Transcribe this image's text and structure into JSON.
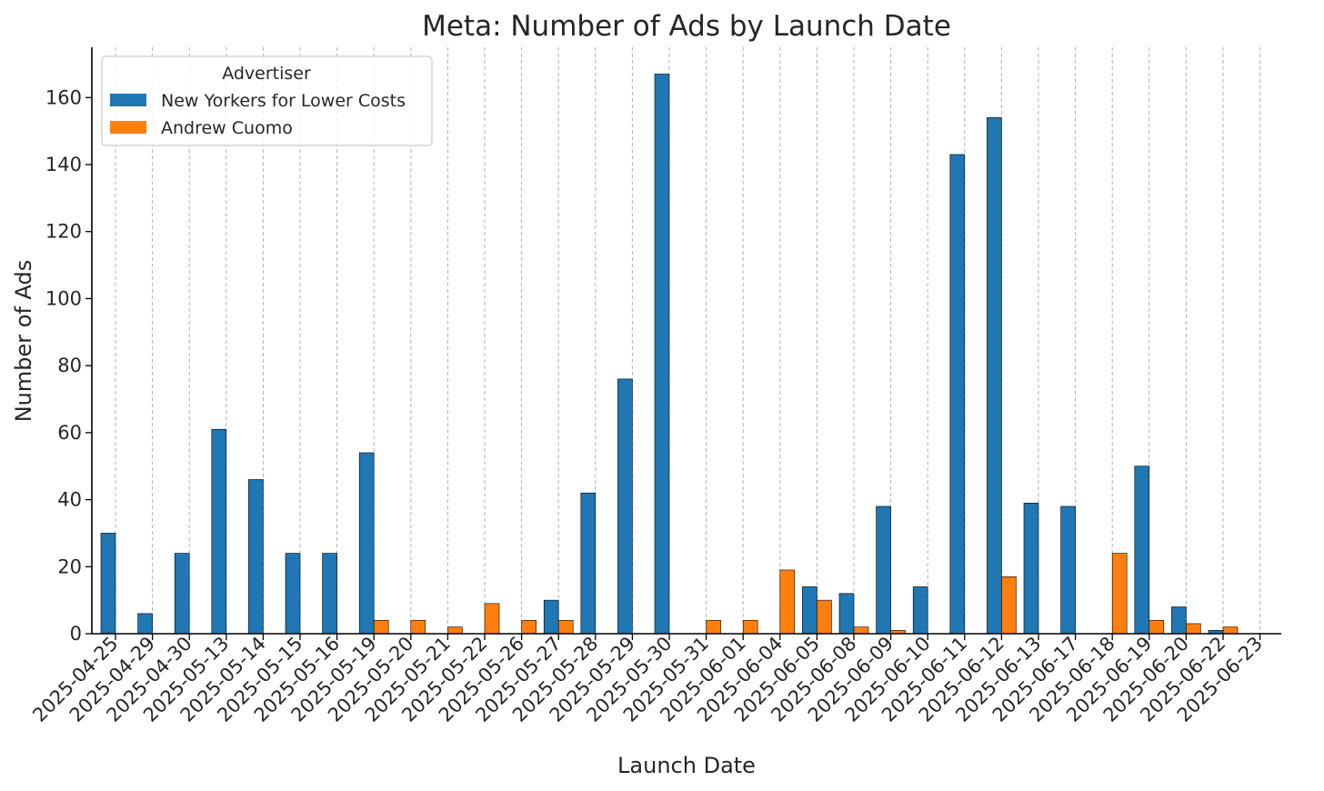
{
  "chart_data": {
    "type": "bar",
    "title": "Meta: Number of Ads by Launch Date",
    "xlabel": "Launch Date",
    "ylabel": "Number of Ads",
    "ylim": [
      0,
      175
    ],
    "yticks": [
      0,
      20,
      40,
      60,
      80,
      100,
      120,
      140,
      160
    ],
    "grid": "vertical dashed lines at each category",
    "legend": {
      "title": "Advertiser",
      "placement": "top-left"
    },
    "categories": [
      "2025-04-25",
      "2025-04-29",
      "2025-04-30",
      "2025-05-13",
      "2025-05-14",
      "2025-05-15",
      "2025-05-16",
      "2025-05-19",
      "2025-05-20",
      "2025-05-21",
      "2025-05-22",
      "2025-05-26",
      "2025-05-27",
      "2025-05-28",
      "2025-05-29",
      "2025-05-30",
      "2025-05-31",
      "2025-06-01",
      "2025-06-04",
      "2025-06-05",
      "2025-06-08",
      "2025-06-09",
      "2025-06-10",
      "2025-06-11",
      "2025-06-12",
      "2025-06-13",
      "2025-06-17",
      "2025-06-18",
      "2025-06-19",
      "2025-06-20",
      "2025-06-22",
      "2025-06-23"
    ],
    "series": [
      {
        "name": "New Yorkers for Lower Costs",
        "color": "#1f77b4",
        "values": [
          30,
          6,
          24,
          61,
          46,
          24,
          24,
          54,
          0,
          0,
          0,
          0,
          10,
          42,
          76,
          167,
          0,
          0,
          0,
          14,
          12,
          38,
          14,
          143,
          154,
          39,
          38,
          0,
          50,
          8,
          1,
          0
        ]
      },
      {
        "name": "Andrew Cuomo",
        "color": "#ff7f0e",
        "values": [
          0,
          0,
          0,
          0,
          0,
          0,
          0,
          4,
          4,
          2,
          9,
          4,
          4,
          0,
          0,
          0,
          4,
          4,
          19,
          10,
          2,
          1,
          0,
          0,
          17,
          0,
          0,
          24,
          4,
          3,
          2,
          0
        ]
      }
    ]
  }
}
